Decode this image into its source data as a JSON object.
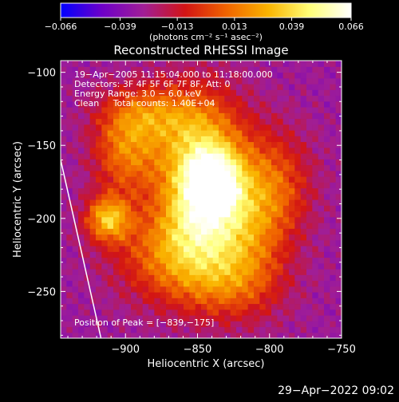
{
  "chart_data": {
    "type": "heatmap",
    "title": "Reconstructed RHESSI Image",
    "xlabel": "Heliocentric X (arcsec)",
    "ylabel": "Heliocentric Y (arcsec)",
    "xlim": [
      -945,
      -750
    ],
    "ylim": [
      -282,
      -92
    ],
    "x_ticks": [
      -900,
      -850,
      -800,
      -750
    ],
    "x_tick_labels": [
      "−900",
      "−850",
      "−800",
      "−750"
    ],
    "y_ticks": [
      -100,
      -150,
      -200,
      -250
    ],
    "y_tick_labels": [
      "−100",
      "−150",
      "−200",
      "−250"
    ],
    "colorbar": {
      "min": -0.066,
      "max": 0.066,
      "ticks": [
        -0.066,
        -0.039,
        -0.013,
        0.013,
        0.039,
        0.066
      ],
      "tick_labels": [
        "−0.066",
        "−0.039",
        "−0.013",
        "0.013",
        "0.039",
        "0.066"
      ],
      "unit_label": "(photons cm⁻² s⁻¹ asec⁻²)"
    },
    "info_lines": [
      "19−Apr−2005 11:15:04.000 to 11:18:00.000",
      "Detectors: 3F 4F 5F 6F 7F 8F, Att: 0",
      "Energy Range: 3.0 − 6.0 keV",
      "Clean     Total counts: 1.40E+04"
    ],
    "peak_text": "Position of Peak = [−839,−175]",
    "peak": [
      -839,
      -175
    ],
    "limb_line": [
      [
        -945,
        -160
      ],
      [
        -917,
        -282
      ]
    ],
    "sources": [
      {
        "x": -848,
        "y": -155,
        "sx": 22,
        "sy": 30,
        "amp": 0.06
      },
      {
        "x": -848,
        "y": -200,
        "sx": 20,
        "sy": 26,
        "amp": 0.05
      },
      {
        "x": -839,
        "y": -175,
        "sx": 12,
        "sy": 14,
        "amp": 0.055
      },
      {
        "x": -912,
        "y": -200,
        "sx": 11,
        "sy": 11,
        "amp": 0.058
      },
      {
        "x": -900,
        "y": -155,
        "sx": 16,
        "sy": 20,
        "amp": 0.04
      },
      {
        "x": -885,
        "y": -128,
        "sx": 22,
        "sy": 14,
        "amp": 0.035
      },
      {
        "x": -873,
        "y": -225,
        "sx": 26,
        "sy": 22,
        "amp": 0.035
      },
      {
        "x": -815,
        "y": -205,
        "sx": 20,
        "sy": 30,
        "amp": 0.035
      },
      {
        "x": -795,
        "y": -175,
        "sx": 18,
        "sy": 26,
        "amp": 0.028
      },
      {
        "x": -830,
        "y": -245,
        "sx": 26,
        "sy": 18,
        "amp": 0.03
      }
    ],
    "background_level": -0.03,
    "colormap": [
      "#0000ff",
      "#6e00c8",
      "#a01e96",
      "#d21414",
      "#f06400",
      "#fab400",
      "#ffff78",
      "#ffffff"
    ],
    "timestamp": "29−Apr−2022 09:02"
  }
}
